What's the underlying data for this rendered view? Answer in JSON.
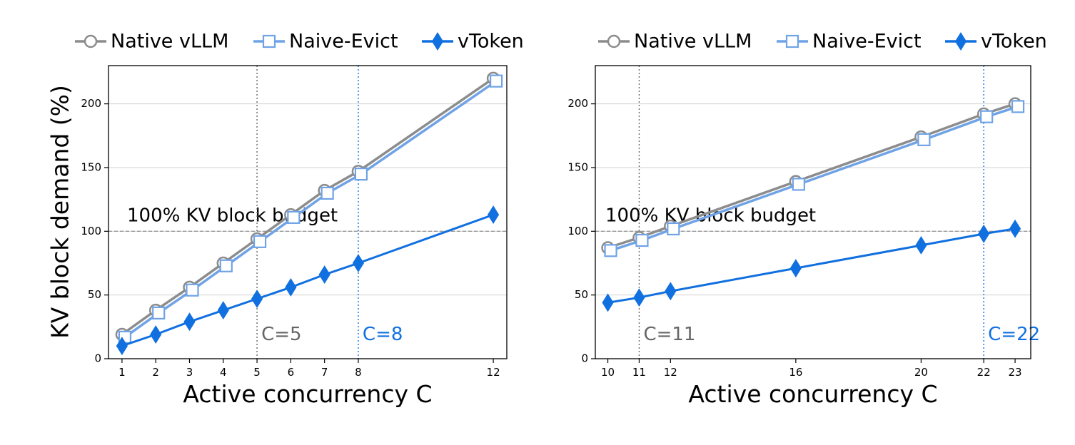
{
  "colors": {
    "native": "#8c8c8c",
    "naive": "#6fa3e6",
    "vtoken": "#1170e0",
    "budget": "#999999",
    "c_gray": "#666666",
    "c_blue": "#1170e0",
    "grid": "#d0d0d0"
  },
  "legend": [
    {
      "key": "native",
      "label": "Native vLLM"
    },
    {
      "key": "naive",
      "label": "Naive-Evict"
    },
    {
      "key": "vtoken",
      "label": "vToken"
    }
  ],
  "ylabel": "KV block demand (%)",
  "chart_data": [
    {
      "type": "line",
      "xlabel": "Active concurrency C",
      "ylabel": "KV block demand (%)",
      "xlim": [
        0.6,
        12.4
      ],
      "ylim": [
        0,
        230
      ],
      "xticks": [
        1,
        2,
        3,
        4,
        5,
        6,
        7,
        8,
        12
      ],
      "yticks": [
        0,
        50,
        100,
        150,
        200
      ],
      "grid": "horizontal",
      "legend_position": "top",
      "budget_line": {
        "y": 100,
        "label": "100% KV block budget"
      },
      "markers": [
        {
          "x": 5,
          "label": "C=5",
          "color": "c_gray"
        },
        {
          "x": 8,
          "label": "C=8",
          "color": "c_blue"
        }
      ],
      "series": [
        {
          "key": "native",
          "name": "Native vLLM",
          "x": [
            1,
            2,
            3,
            4,
            5,
            6,
            7,
            8,
            12
          ],
          "y": [
            19,
            38,
            56,
            75,
            94,
            113,
            132,
            147,
            220
          ]
        },
        {
          "key": "naive",
          "name": "Naive-Evict",
          "x": [
            1,
            2,
            3,
            4,
            5,
            6,
            7,
            8,
            12
          ],
          "y": [
            18,
            37,
            55,
            74,
            93,
            112,
            131,
            146,
            219
          ]
        },
        {
          "key": "vtoken",
          "name": "vToken",
          "x": [
            1,
            2,
            3,
            4,
            5,
            6,
            7,
            8,
            12
          ],
          "y": [
            10,
            19,
            29,
            38,
            47,
            56,
            66,
            75,
            113
          ]
        }
      ]
    },
    {
      "type": "line",
      "xlabel": "Active concurrency C",
      "ylabel": "",
      "xlim": [
        9.6,
        23.5
      ],
      "ylim": [
        0,
        230
      ],
      "xticks": [
        10,
        11,
        12,
        16,
        20,
        22,
        23
      ],
      "yticks": [
        0,
        50,
        100,
        150,
        200
      ],
      "grid": "horizontal",
      "legend_position": "top",
      "budget_line": {
        "y": 100,
        "label": "100% KV block budget"
      },
      "markers": [
        {
          "x": 11,
          "label": "C=11",
          "color": "c_gray"
        },
        {
          "x": 22,
          "label": "C=22",
          "color": "c_blue"
        }
      ],
      "series": [
        {
          "key": "native",
          "name": "Native vLLM",
          "x": [
            10,
            11,
            12,
            16,
            20,
            22,
            23
          ],
          "y": [
            87,
            95,
            104,
            139,
            174,
            192,
            200
          ]
        },
        {
          "key": "naive",
          "name": "Naive-Evict",
          "x": [
            10,
            11,
            12,
            16,
            20,
            22,
            23
          ],
          "y": [
            86,
            94,
            103,
            138,
            173,
            191,
            199
          ]
        },
        {
          "key": "vtoken",
          "name": "vToken",
          "x": [
            10,
            11,
            12,
            16,
            20,
            22,
            23
          ],
          "y": [
            44,
            48,
            53,
            71,
            89,
            98,
            102
          ]
        }
      ]
    }
  ]
}
